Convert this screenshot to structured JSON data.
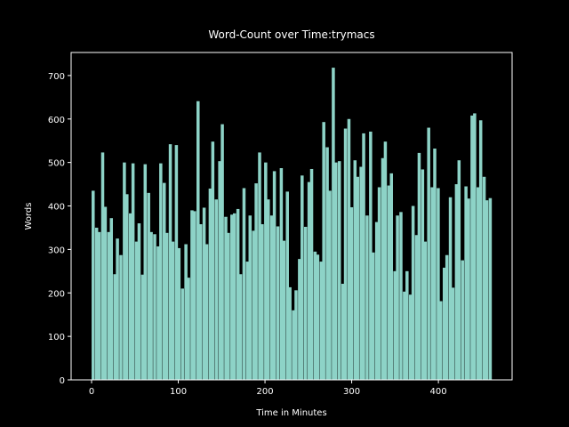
{
  "chart_data": {
    "type": "bar",
    "title": "Word-Count over Time:trymacs",
    "x_label": "Time in Minutes",
    "y_label": "Words",
    "color": "#8dd3c7",
    "x": [
      0,
      4,
      7,
      11,
      14,
      18,
      21,
      25,
      28,
      32,
      36,
      39,
      43,
      46,
      50,
      53,
      57,
      60,
      64,
      67,
      71,
      75,
      78,
      82,
      85,
      89,
      92,
      96,
      99,
      103,
      107,
      110,
      114,
      117,
      121,
      124,
      128,
      131,
      135,
      138,
      142,
      146,
      149,
      153,
      156,
      160,
      163,
      167,
      170,
      174,
      178,
      181,
      185,
      188,
      192,
      195,
      199,
      202,
      206,
      209,
      213,
      217,
      220,
      224,
      227,
      231,
      234,
      238,
      241,
      245,
      249,
      252,
      256,
      259,
      263,
      266,
      270,
      273,
      277,
      280,
      284,
      288,
      291,
      295,
      298,
      302,
      305,
      309,
      312,
      316,
      320,
      323,
      327,
      330,
      334,
      337,
      341,
      344,
      348,
      351,
      355,
      359,
      362,
      366,
      369,
      373,
      376,
      380,
      383,
      387,
      391,
      394,
      398,
      401,
      405,
      408,
      412,
      415,
      419,
      422,
      426,
      430,
      433,
      437,
      440,
      444,
      447,
      451,
      454,
      458
    ],
    "values": [
      435,
      350,
      340,
      523,
      398,
      340,
      372,
      243,
      325,
      287,
      500,
      427,
      383,
      498,
      318,
      360,
      242,
      496,
      430,
      340,
      335,
      307,
      498,
      453,
      338,
      542,
      318,
      540,
      303,
      210,
      312,
      235,
      390,
      388,
      641,
      358,
      396,
      312,
      440,
      548,
      415,
      503,
      588,
      375,
      338,
      380,
      383,
      393,
      243,
      441,
      272,
      378,
      343,
      452,
      523,
      358,
      500,
      415,
      378,
      480,
      353,
      487,
      320,
      433,
      213,
      160,
      206,
      278,
      470,
      352,
      455,
      485,
      295,
      288,
      272,
      593,
      535,
      435,
      718,
      500,
      503,
      221,
      578,
      600,
      397,
      505,
      467,
      490,
      567,
      378,
      571,
      293,
      363,
      443,
      510,
      548,
      447,
      475,
      250,
      378,
      386,
      203,
      250,
      196,
      400,
      333,
      522,
      484,
      318,
      580,
      443,
      532,
      441,
      181,
      258,
      287,
      420,
      212,
      450,
      505,
      275,
      445,
      417,
      608,
      613,
      443,
      597,
      467,
      413,
      418
    ],
    "xlim": [
      -23.6,
      485
    ],
    "ylim": [
      0,
      753
    ],
    "xticks": [
      0,
      100,
      200,
      300,
      400
    ],
    "yticks": [
      0,
      100,
      200,
      300,
      400,
      500,
      600,
      700
    ]
  }
}
